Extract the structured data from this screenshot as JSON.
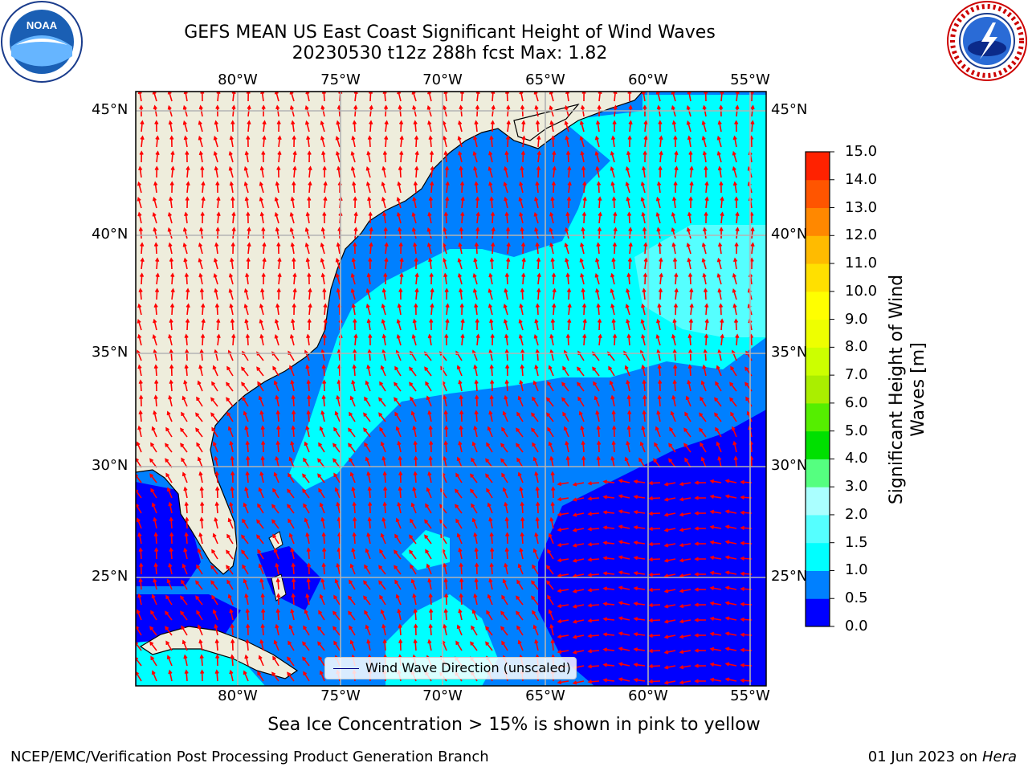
{
  "header": {
    "title_line1": "GEFS MEAN US East Coast Significant Height of Wind Waves",
    "title_line2": "20230530 t12z 288h fcst   Max: 1.82"
  },
  "logos": {
    "left": "noaa-logo",
    "right": "national-weather-service-logo"
  },
  "map": {
    "lon_labels": [
      "80°W",
      "75°W",
      "70°W",
      "65°W",
      "60°W",
      "55°W"
    ],
    "lat_labels": [
      "45°N",
      "40°N",
      "35°N",
      "30°N",
      "25°N"
    ],
    "extent": {
      "lon": [
        -85,
        -54.5
      ],
      "lat": [
        20.5,
        46.5
      ]
    },
    "gridlines": true,
    "colors": {
      "land": "#eeeddc",
      "arrow": "#ff0000",
      "grid": "#b3b3b3"
    },
    "legend_text": "Wind Wave Direction (unscaled)"
  },
  "colorbar": {
    "label": "Significant Height of Wind Waves [m]",
    "ticks": [
      "0.0",
      "0.5",
      "1.0",
      "1.5",
      "2.0",
      "3.0",
      "4.0",
      "5.0",
      "6.0",
      "7.0",
      "8.0",
      "9.0",
      "10.0",
      "11.0",
      "12.0",
      "13.0",
      "14.0",
      "15.0"
    ],
    "colors": [
      "#0000ff",
      "#0080ff",
      "#00ffff",
      "#55ffff",
      "#aaffff",
      "#55ff80",
      "#00e000",
      "#55ee00",
      "#aaee00",
      "#ccff00",
      "#eeff00",
      "#ffff00",
      "#ffe000",
      "#ffbb00",
      "#ff8800",
      "#ff5500",
      "#ff2200",
      "#ff0000"
    ]
  },
  "footer": {
    "ice_note": "Sea Ice Concentration > 15% is shown in pink to yellow",
    "left": "NCEP/EMC/Verification Post Processing Product Generation Branch",
    "date": "01 Jun 2023 on",
    "machine": "Hera"
  }
}
